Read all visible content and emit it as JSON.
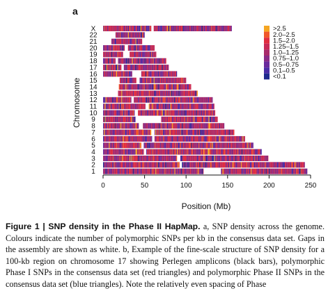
{
  "panel_label": "a",
  "caption": {
    "head": "Figure 1 | SNP density in the Phase II HapMap.",
    "body": "a, SNP density across the genome. Colours indicate the number of polymorphic SNPs per kb in the consensus data set. Gaps in the assembly are shown as white. b, Example of the fine-scale structure of SNP density for a 100-kb region on chromosome 17 showing Perlegen amplicons (black bars), polymorphic Phase I SNPs in the consensus data set (red triangles) and polymorphic Phase II SNPs in the consensus data set (blue triangles). Note the relatively even spacing of Phase"
  },
  "chart_data": {
    "type": "heatmap",
    "xlabel": "Position (Mb)",
    "ylabel": "Chromosome",
    "xlim": [
      0,
      250
    ],
    "xticks": [
      "0",
      "50",
      "100",
      "150",
      "200",
      "250"
    ],
    "xtick_values": [
      0,
      50,
      100,
      150,
      200,
      250
    ],
    "categories": [
      "1",
      "2",
      "3",
      "4",
      "5",
      "6",
      "7",
      "8",
      "9",
      "10",
      "11",
      "12",
      "13",
      "14",
      "15",
      "16",
      "17",
      "18",
      "19",
      "20",
      "21",
      "22",
      "X"
    ],
    "chromosome_length_mb": [
      246,
      243,
      199,
      191,
      181,
      171,
      158,
      146,
      138,
      135,
      134,
      132,
      114,
      106,
      100,
      89,
      79,
      76,
      64,
      62,
      47,
      50,
      155
    ],
    "gaps_mb": [
      [
        [
          121,
          142
        ]
      ],
      [
        [
          92,
          95
        ]
      ],
      [
        [
          89,
          93
        ]
      ],
      [
        [
          49,
          52
        ]
      ],
      [
        [
          46,
          49
        ]
      ],
      [
        [
          59,
          62
        ]
      ],
      [
        [
          58,
          62
        ]
      ],
      [
        [
          43,
          48
        ]
      ],
      [
        [
          39,
          70
        ]
      ],
      [
        [
          38,
          42
        ]
      ],
      [
        [
          51,
          55
        ]
      ],
      [
        [
          34,
          37
        ]
      ],
      [
        [
          0,
          18
        ]
      ],
      [
        [
          0,
          19
        ]
      ],
      [
        [
          0,
          20
        ],
        [
          40,
          44
        ]
      ],
      [
        [
          35,
          46
        ]
      ],
      [
        [
          22,
          25
        ]
      ],
      [
        [
          15,
          18
        ]
      ],
      [
        [
          24,
          32
        ]
      ],
      [
        [
          26,
          30
        ]
      ],
      [
        [
          0,
          10
        ]
      ],
      [
        [
          0,
          15
        ]
      ],
      [
        [
          58,
          61
        ]
      ]
    ],
    "legend": {
      "labels": [
        ">2.5",
        "2.0–2.5",
        "1.5–2.0",
        "1.25–1.5",
        "1.0–1.25",
        "0.75–1.0",
        "0.5–0.75",
        "0.1–0.5",
        "<0.1"
      ],
      "colors": [
        "#f5a623",
        "#f0582a",
        "#e02d3f",
        "#c72a55",
        "#a82b6a",
        "#882b86",
        "#6a2a9c",
        "#4a2ca5",
        "#1f2a8e"
      ],
      "placement": "top-right"
    },
    "grid": false
  }
}
